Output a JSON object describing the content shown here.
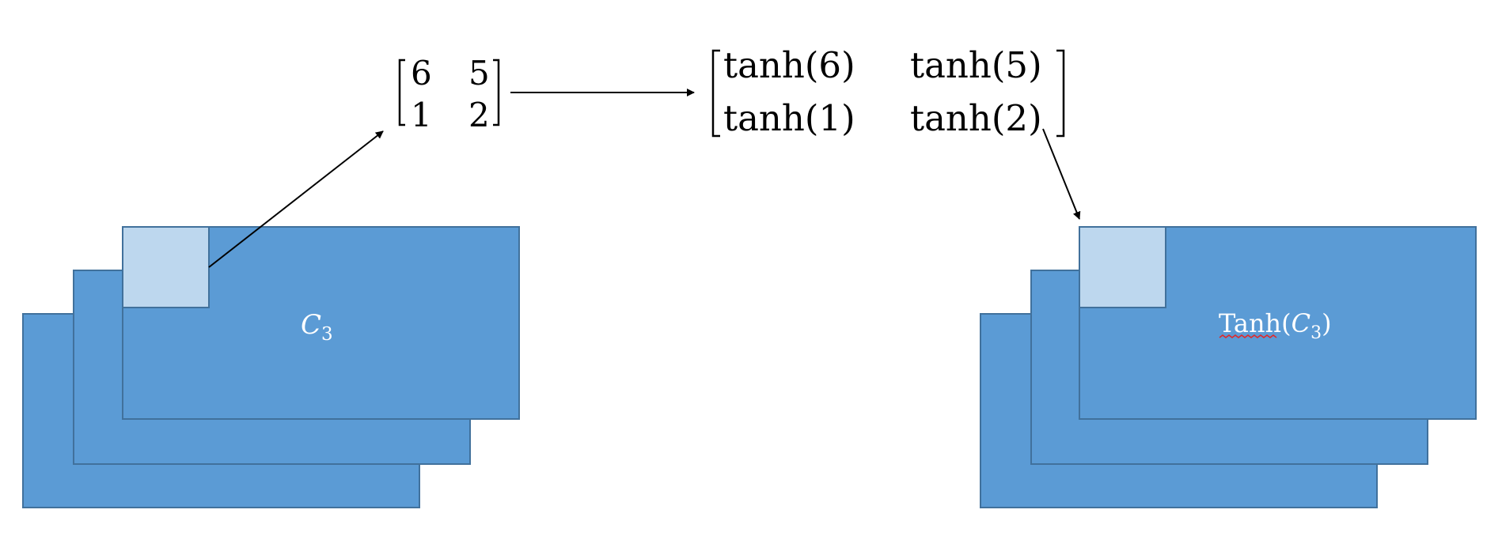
{
  "colors": {
    "layer_fill": "#5b9bd5",
    "layer_stroke": "#41719c",
    "patch_fill": "#bdd7ee",
    "label_text": "#ffffff",
    "spellcheck_underline": "#e0282a"
  },
  "left_stack": {
    "label_base": "C",
    "label_subscript": "3"
  },
  "right_stack": {
    "label_prefix": "Tanh(",
    "label_base": "C",
    "label_subscript": "3",
    "label_suffix": ")"
  },
  "input_matrix": {
    "rows": [
      [
        "6",
        "5"
      ],
      [
        "1",
        "2"
      ]
    ]
  },
  "output_matrix": {
    "rows": [
      [
        "tanh(6)",
        "tanh(5)"
      ],
      [
        "tanh(1)",
        "tanh(2)"
      ]
    ]
  }
}
